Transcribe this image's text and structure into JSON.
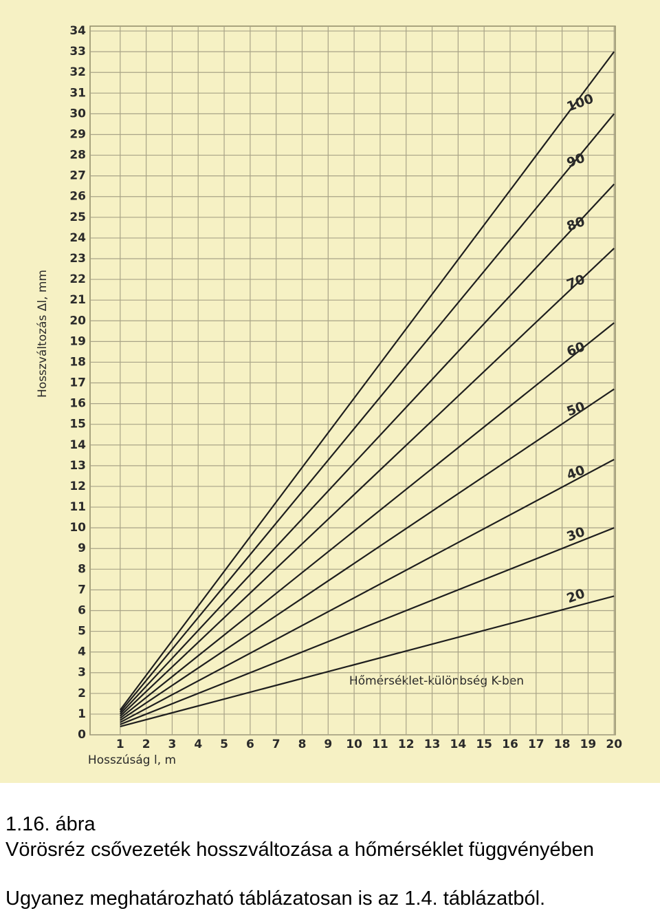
{
  "chart_data": {
    "type": "line",
    "xlabel": "Hosszúság l, m",
    "ylabel": "Hosszváltozás Δl, mm",
    "annotation": "Hőmérséklet-különbség K-ben",
    "x": [
      1,
      20
    ],
    "series": [
      {
        "name": "100",
        "values": [
          1.2,
          33.0
        ]
      },
      {
        "name": "90",
        "values": [
          1.1,
          30.0
        ]
      },
      {
        "name": "80",
        "values": [
          1.0,
          26.6
        ]
      },
      {
        "name": "70",
        "values": [
          0.9,
          23.5
        ]
      },
      {
        "name": "60",
        "values": [
          0.8,
          19.9
        ]
      },
      {
        "name": "50",
        "values": [
          0.7,
          16.7
        ]
      },
      {
        "name": "40",
        "values": [
          0.6,
          13.3
        ]
      },
      {
        "name": "30",
        "values": [
          0.5,
          10.0
        ]
      },
      {
        "name": "20",
        "values": [
          0.4,
          6.7
        ]
      }
    ],
    "color": "#1e1e1e",
    "xlim": [
      0,
      20.1
    ],
    "ylim": [
      0,
      34.5
    ],
    "xticks": [
      1,
      2,
      3,
      4,
      5,
      6,
      7,
      8,
      9,
      10,
      11,
      12,
      13,
      14,
      15,
      16,
      17,
      18,
      19,
      20
    ],
    "yticks": [
      0,
      1,
      2,
      3,
      4,
      5,
      6,
      7,
      8,
      9,
      10,
      11,
      12,
      13,
      14,
      15,
      16,
      17,
      18,
      19,
      20,
      21,
      22,
      23,
      24,
      25,
      26,
      27,
      28,
      29,
      30,
      31,
      32,
      33,
      34
    ],
    "grid": true
  },
  "caption": {
    "figure": "1.16. ábra",
    "title": "Vörösréz csővezeték hosszváltozása a hőmérséklet függvényében",
    "note": "Ugyanez meghatározható táblázatosan is az 1.4. táblázatból."
  }
}
